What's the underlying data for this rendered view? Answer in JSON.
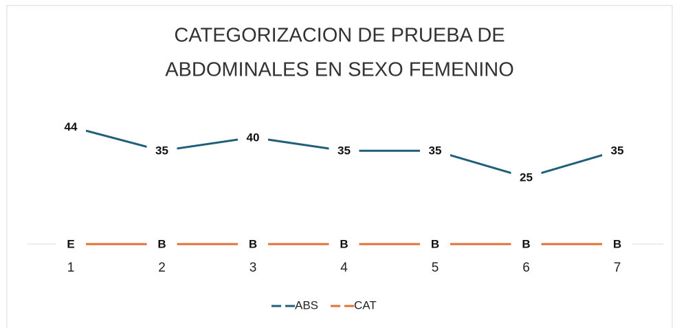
{
  "chart_data": {
    "type": "line",
    "title": [
      "CATEGORIZACION DE PRUEBA DE",
      "ABDOMINALES EN SEXO FEMENINO"
    ],
    "categories": [
      "1",
      "2",
      "3",
      "4",
      "5",
      "6",
      "7"
    ],
    "series": [
      {
        "name": "ABS",
        "color": "#1f5f7a",
        "values": [
          44,
          35,
          40,
          35,
          35,
          25,
          35
        ]
      },
      {
        "name": "CAT",
        "color": "#e07034",
        "values": [
          0,
          0,
          0,
          0,
          0,
          0,
          0
        ],
        "value_labels": [
          "E",
          "B",
          "B",
          "B",
          "B",
          "B",
          "B"
        ]
      }
    ],
    "ylim": [
      0,
      50
    ]
  }
}
